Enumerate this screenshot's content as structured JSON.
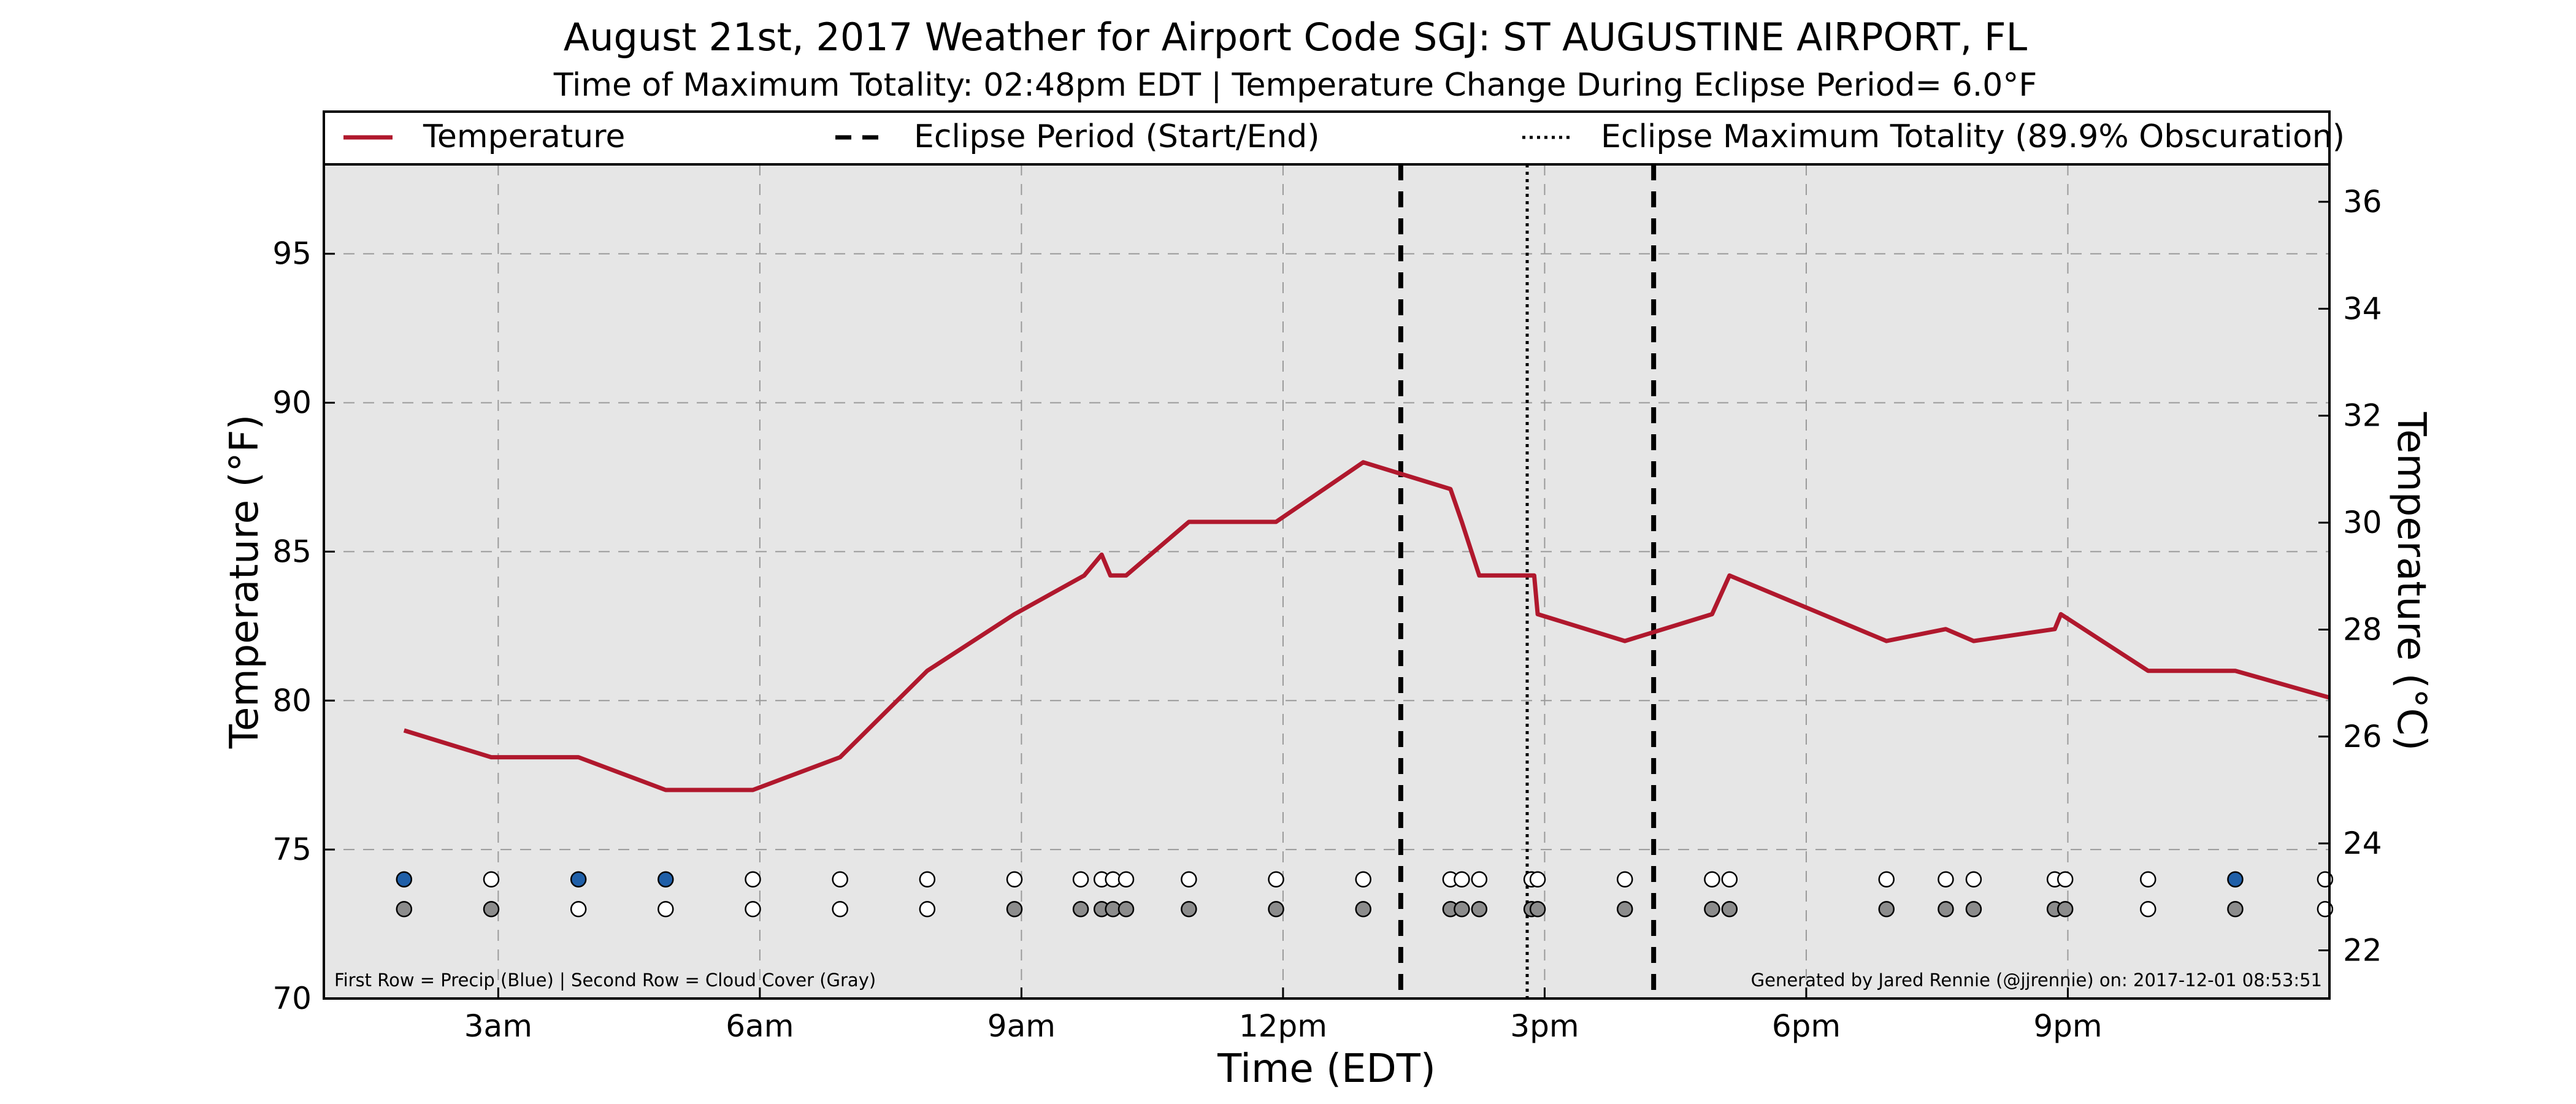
{
  "title": "August 21st, 2017 Weather for Airport Code SGJ: ST AUGUSTINE AIRPORT, FL",
  "subtitle": "Time of Maximum Totality: 02:48pm EDT | Temperature Change During Eclipse Period= 6.0°F",
  "footnote_left": "First Row = Precip (Blue) | Second Row = Cloud Cover (Gray)",
  "footnote_right": "Generated by Jared Rennie (@jjrennie) on: 2017-12-01 08:53:51",
  "colors": {
    "temperature": "#b0182d",
    "plot_background": "#e6e6e6",
    "precip": "#1f5fa8",
    "cloud": "#8c8c8c",
    "clear": "#ffffff"
  },
  "chart_data": {
    "type": "line",
    "xlabel": "Time (EDT)",
    "ylabel": "Temperature (°F)",
    "ylabel_right": "Temperature (°C)",
    "xlim": [
      1.0,
      24.0
    ],
    "ylim": [
      70,
      98
    ],
    "ylim_right": [
      21.1,
      36.7
    ],
    "x_ticks": [
      {
        "x": 3,
        "label": "3am"
      },
      {
        "x": 6,
        "label": "6am"
      },
      {
        "x": 9,
        "label": "9am"
      },
      {
        "x": 12,
        "label": "12pm"
      },
      {
        "x": 15,
        "label": "3pm"
      },
      {
        "x": 18,
        "label": "6pm"
      },
      {
        "x": 21,
        "label": "9pm"
      }
    ],
    "y_ticks": [
      70,
      75,
      80,
      85,
      90,
      95
    ],
    "y_ticks_right": [
      22,
      24,
      26,
      28,
      30,
      32,
      34,
      36
    ],
    "grid": true,
    "legend_position": "top",
    "legend": [
      {
        "label": "Temperature",
        "style": "solid"
      },
      {
        "label": "Eclipse Period (Start/End)",
        "style": "dashed"
      },
      {
        "label": "Eclipse Maximum Totality (89.9% Obscuration)",
        "style": "dotted"
      }
    ],
    "series": [
      {
        "name": "Temperature",
        "x": [
          1.92,
          2.92,
          3.92,
          4.92,
          5.92,
          6.92,
          7.92,
          8.92,
          9.72,
          9.92,
          10.02,
          10.2,
          10.92,
          11.92,
          12.92,
          13.92,
          14.05,
          14.25,
          14.82,
          14.88,
          14.92,
          15.92,
          16.92,
          17.12,
          18.92,
          19.6,
          19.92,
          20.85,
          20.92,
          21.92,
          22.92,
          24.0
        ],
        "y": [
          79.0,
          78.1,
          78.1,
          77.0,
          77.0,
          78.1,
          81.0,
          82.9,
          84.2,
          84.9,
          84.2,
          84.2,
          86.0,
          86.0,
          88.0,
          87.1,
          86.0,
          84.2,
          84.2,
          84.2,
          82.9,
          82.0,
          82.9,
          84.2,
          82.0,
          82.4,
          82.0,
          82.4,
          82.9,
          81.0,
          81.0,
          80.1
        ]
      }
    ],
    "eclipse": {
      "start": 13.35,
      "max": 14.8,
      "end": 16.25
    },
    "precip_row": {
      "y": 74,
      "points": [
        {
          "x": 1.92,
          "precip": true
        },
        {
          "x": 2.92,
          "precip": false
        },
        {
          "x": 3.92,
          "precip": true
        },
        {
          "x": 4.92,
          "precip": true
        },
        {
          "x": 5.92,
          "precip": false
        },
        {
          "x": 6.92,
          "precip": false
        },
        {
          "x": 7.92,
          "precip": false
        },
        {
          "x": 8.92,
          "precip": false
        },
        {
          "x": 9.68,
          "precip": false
        },
        {
          "x": 9.92,
          "precip": false
        },
        {
          "x": 10.05,
          "precip": false
        },
        {
          "x": 10.2,
          "precip": false
        },
        {
          "x": 10.92,
          "precip": false
        },
        {
          "x": 11.92,
          "precip": false
        },
        {
          "x": 12.92,
          "precip": false
        },
        {
          "x": 13.92,
          "precip": false
        },
        {
          "x": 14.05,
          "precip": false
        },
        {
          "x": 14.25,
          "precip": false
        },
        {
          "x": 14.85,
          "precip": false
        },
        {
          "x": 14.92,
          "precip": false
        },
        {
          "x": 15.92,
          "precip": false
        },
        {
          "x": 16.92,
          "precip": false
        },
        {
          "x": 17.12,
          "precip": false
        },
        {
          "x": 18.92,
          "precip": false
        },
        {
          "x": 19.6,
          "precip": false
        },
        {
          "x": 19.92,
          "precip": false
        },
        {
          "x": 20.85,
          "precip": false
        },
        {
          "x": 20.97,
          "precip": false
        },
        {
          "x": 21.92,
          "precip": false
        },
        {
          "x": 22.92,
          "precip": true
        },
        {
          "x": 23.95,
          "precip": false
        }
      ]
    },
    "cloud_row": {
      "y": 73,
      "points": [
        {
          "x": 1.92,
          "cloud": true
        },
        {
          "x": 2.92,
          "cloud": true
        },
        {
          "x": 3.92,
          "cloud": false
        },
        {
          "x": 4.92,
          "cloud": false
        },
        {
          "x": 5.92,
          "cloud": false
        },
        {
          "x": 6.92,
          "cloud": false
        },
        {
          "x": 7.92,
          "cloud": false
        },
        {
          "x": 8.92,
          "cloud": true
        },
        {
          "x": 9.68,
          "cloud": true
        },
        {
          "x": 9.92,
          "cloud": true
        },
        {
          "x": 10.05,
          "cloud": true
        },
        {
          "x": 10.2,
          "cloud": true
        },
        {
          "x": 10.92,
          "cloud": true
        },
        {
          "x": 11.92,
          "cloud": true
        },
        {
          "x": 12.92,
          "cloud": true
        },
        {
          "x": 13.92,
          "cloud": true
        },
        {
          "x": 14.05,
          "cloud": true
        },
        {
          "x": 14.25,
          "cloud": true
        },
        {
          "x": 14.85,
          "cloud": true
        },
        {
          "x": 14.92,
          "cloud": true
        },
        {
          "x": 15.92,
          "cloud": true
        },
        {
          "x": 16.92,
          "cloud": true
        },
        {
          "x": 17.12,
          "cloud": true
        },
        {
          "x": 18.92,
          "cloud": true
        },
        {
          "x": 19.6,
          "cloud": true
        },
        {
          "x": 19.92,
          "cloud": true
        },
        {
          "x": 20.85,
          "cloud": true
        },
        {
          "x": 20.97,
          "cloud": true
        },
        {
          "x": 21.92,
          "cloud": false
        },
        {
          "x": 22.92,
          "cloud": true
        },
        {
          "x": 23.95,
          "cloud": false
        }
      ]
    }
  }
}
